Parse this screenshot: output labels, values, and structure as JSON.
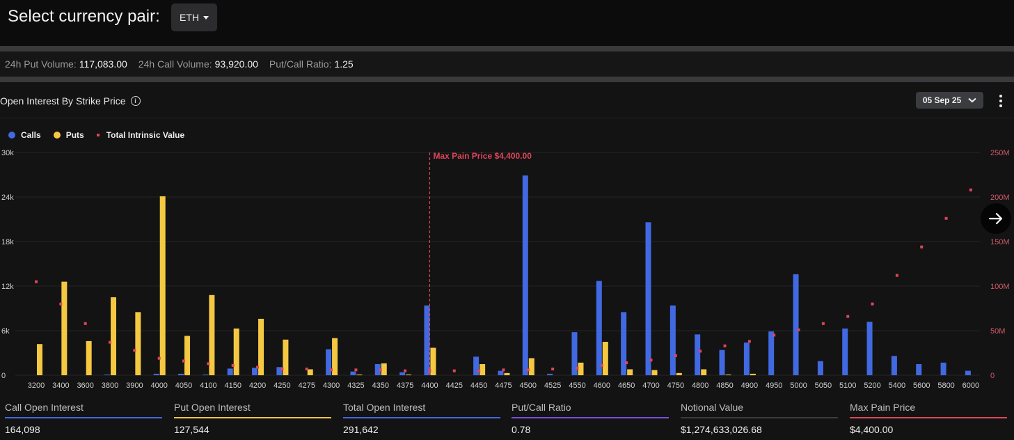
{
  "header": {
    "title": "Select currency pair:",
    "pair": "ETH"
  },
  "stats": {
    "put_volume_label": "24h Put Volume:",
    "put_volume": "117,083.00",
    "call_volume_label": "24h Call Volume:",
    "call_volume": "93,920.00",
    "pc_ratio_label": "Put/Call Ratio:",
    "pc_ratio": "1.25"
  },
  "panel": {
    "title": "Open Interest By Strike Price",
    "expiry": "05 Sep 25"
  },
  "legend": {
    "calls": "Calls",
    "puts": "Puts",
    "intrinsic": "Total Intrinsic Value"
  },
  "colors": {
    "calls": "#4169e1",
    "puts": "#f5c842",
    "intrinsic": "#e0455a",
    "grid": "#242424"
  },
  "chart_data": {
    "type": "bar",
    "categories": [
      "3200",
      "3400",
      "3600",
      "3800",
      "3900",
      "4000",
      "4050",
      "4100",
      "4150",
      "4200",
      "4250",
      "4275",
      "4300",
      "4325",
      "4350",
      "4375",
      "4400",
      "4425",
      "4450",
      "4475",
      "4500",
      "4525",
      "4550",
      "4600",
      "4650",
      "4700",
      "4750",
      "4800",
      "4850",
      "4900",
      "4950",
      "5000",
      "5050",
      "5100",
      "5200",
      "5400",
      "5600",
      "5800",
      "6000"
    ],
    "series": [
      {
        "name": "Calls",
        "axis": "left",
        "values": [
          0,
          0,
          0,
          100,
          0,
          200,
          200,
          100,
          900,
          1000,
          1100,
          0,
          3500,
          500,
          1500,
          400,
          9400,
          0,
          2500,
          600,
          26900,
          200,
          5800,
          12700,
          8500,
          20600,
          9400,
          5500,
          3400,
          4400,
          5900,
          13600,
          1900,
          6300,
          7200,
          2600,
          1500,
          1700,
          600
        ]
      },
      {
        "name": "Puts",
        "axis": "left",
        "values": [
          4200,
          12600,
          4600,
          10500,
          8500,
          24100,
          5300,
          10800,
          6300,
          7600,
          4800,
          800,
          5000,
          100,
          1600,
          100,
          3700,
          0,
          1500,
          300,
          2300,
          0,
          1700,
          4500,
          800,
          700,
          300,
          800,
          100,
          200,
          0,
          0,
          0,
          0,
          0,
          0,
          0,
          0,
          0
        ]
      },
      {
        "name": "Total Intrinsic Value",
        "axis": "right",
        "values": [
          105000000,
          80000000,
          58000000,
          37000000,
          28000000,
          19000000,
          16000000,
          13000000,
          11000000,
          9000000,
          7000000,
          7000000,
          6000000,
          6000000,
          6000000,
          5000000,
          5000000,
          5000000,
          5000000,
          6000000,
          6000000,
          7000000,
          8000000,
          11000000,
          14000000,
          17000000,
          22000000,
          27000000,
          33000000,
          38000000,
          45000000,
          51000000,
          58000000,
          66000000,
          80000000,
          112000000,
          144000000,
          176000000,
          208000000
        ]
      }
    ],
    "y_left": {
      "ticks": [
        "0",
        "6k",
        "12k",
        "18k",
        "24k",
        "30k"
      ],
      "range": [
        0,
        30000
      ]
    },
    "y_right": {
      "ticks": [
        "0",
        "50M",
        "100M",
        "150M",
        "200M",
        "250M"
      ],
      "range": [
        0,
        250000000
      ]
    },
    "annotation": {
      "label": "Max Pain Price $4,400.00",
      "category": "4400"
    },
    "legend_position": "top-left"
  },
  "footer": [
    {
      "label": "Call Open Interest",
      "value": "164,098",
      "color": "#4169e1"
    },
    {
      "label": "Put Open Interest",
      "value": "127,544",
      "color": "#f5c842"
    },
    {
      "label": "Total Open Interest",
      "value": "291,642",
      "color": "#4169e1"
    },
    {
      "label": "Put/Call Ratio",
      "value": "0.78",
      "color": "#7b4fe0"
    },
    {
      "label": "Notional Value",
      "value": "$1,274,633,026.68",
      "color": "#3a3c40"
    },
    {
      "label": "Max Pain Price",
      "value": "$4,400.00",
      "color": "#e0455a"
    }
  ]
}
